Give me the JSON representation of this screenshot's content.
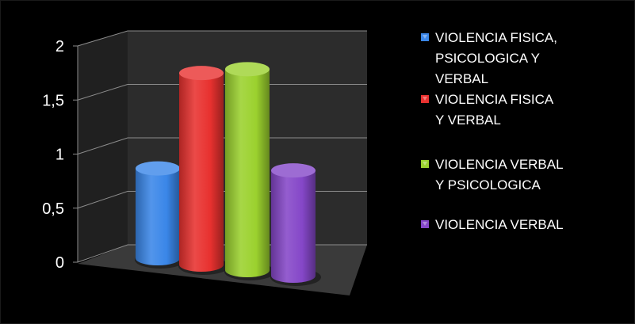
{
  "chart_data": {
    "type": "bar",
    "style": "3d-cylinder",
    "categories": [
      "VIOLENCIA FISICA, PSICOLOGICA Y VERBAL",
      "VIOLENCIA FISICA Y VERBAL",
      "VIOLENCIA VERBAL Y PSICOLOGICA",
      "VIOLENCIA VERBAL"
    ],
    "values": [
      1,
      2,
      2,
      1
    ],
    "colors": [
      "#3a86e8",
      "#e8312f",
      "#9bd12e",
      "#8547c8"
    ],
    "y_ticks": [
      "0",
      "0,5",
      "1",
      "1,5",
      "2"
    ],
    "ylim": [
      0,
      2
    ],
    "grid": true,
    "legend": {
      "position": "right",
      "lines": [
        [
          "VIOLENCIA FISICA,",
          "PSICOLOGICA Y",
          "VERBAL"
        ],
        [
          "VIOLENCIA FISICA",
          "Y VERBAL"
        ],
        [
          "VIOLENCIA VERBAL",
          "Y PSICOLOGICA"
        ],
        [
          "VIOLENCIA VERBAL"
        ]
      ]
    },
    "background": "#000000"
  }
}
